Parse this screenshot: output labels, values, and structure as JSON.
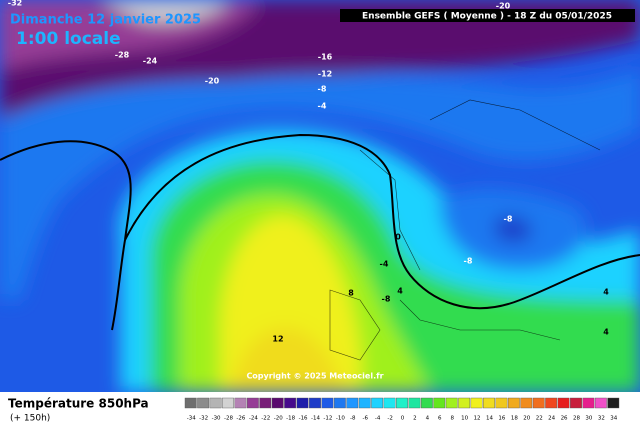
{
  "header": {
    "date": "Dimanche 12 janvier 2025",
    "time": "1:00 locale",
    "model": "Ensemble GEFS  ( Moyenne )  - 18 Z du 05/01/2025"
  },
  "footer": {
    "field": "Température 850hPa",
    "lead": "(+ 150h)",
    "copyright": "Copyright © 2025 Meteociel.fr"
  },
  "contour_labels": [
    "-32",
    "-28",
    "-24",
    "-20",
    "-16",
    "-12",
    "-8",
    "-4",
    "-20",
    "-8",
    "-8",
    "0",
    "-4",
    "4",
    "8",
    "-8",
    "4",
    "4",
    "12"
  ],
  "legend": {
    "labels": [
      -34,
      -32,
      -30,
      -28,
      -26,
      -24,
      -22,
      -20,
      -18,
      -16,
      -14,
      -12,
      -10,
      -8,
      -6,
      -4,
      -2,
      0,
      2,
      4,
      6,
      8,
      10,
      12,
      14,
      16,
      18,
      20,
      22,
      24,
      26,
      28,
      30,
      32,
      34
    ],
    "colors": [
      "#6e6e6e",
      "#8c8c8c",
      "#b4b4b4",
      "#d2d2d2",
      "#b482b4",
      "#963c96",
      "#781e78",
      "#5a0a6e",
      "#460a8c",
      "#1e1eaa",
      "#1e3cc8",
      "#1e5ae6",
      "#1e78f0",
      "#1e96ff",
      "#1eb4ff",
      "#1ed2ff",
      "#1ee6f0",
      "#1ef0c8",
      "#1ee6a0",
      "#32dc50",
      "#64e61e",
      "#a0f01e",
      "#d2f01e",
      "#f0f01e",
      "#f0dc1e",
      "#f0c81e",
      "#f0aa1e",
      "#f08c1e",
      "#f06e1e",
      "#f0461e",
      "#e61e1e",
      "#c81e3c",
      "#e61e8c",
      "#f050c8",
      "#1e1e1e"
    ]
  }
}
